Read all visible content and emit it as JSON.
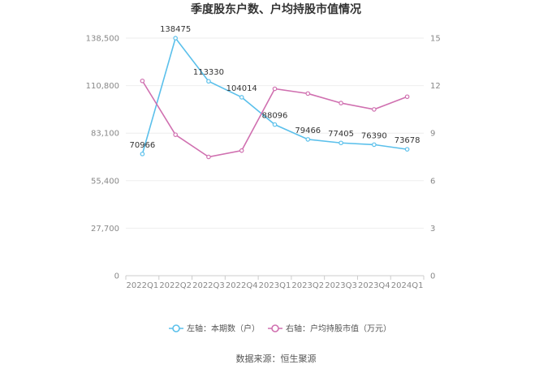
{
  "chart_data": {
    "type": "line",
    "title": "季度股东户数、户均持股市值情况",
    "categories": [
      "2022Q1",
      "2022Q2",
      "2022Q3",
      "2022Q4",
      "2023Q1",
      "2023Q2",
      "2023Q3",
      "2023Q4",
      "2024Q1"
    ],
    "left_axis": {
      "ylim": [
        0,
        138500
      ],
      "ticks": [
        0,
        27700,
        55400,
        83100,
        110800,
        138500
      ],
      "tick_labels": [
        "0",
        "27,700",
        "55,400",
        "83,100",
        "110,800",
        "138,500"
      ]
    },
    "right_axis": {
      "ylim": [
        0,
        15
      ],
      "ticks": [
        0,
        3,
        6,
        9,
        12,
        15
      ],
      "tick_labels": [
        "0",
        "3",
        "6",
        "9",
        "12",
        "15"
      ]
    },
    "series": [
      {
        "name": "左轴：本期数（户）",
        "axis": "left",
        "color": "#5bc0eb",
        "values": [
          70966,
          138475,
          113330,
          104014,
          88096,
          79466,
          77405,
          76390,
          73678
        ],
        "labels": [
          "70966",
          "138475",
          "113330",
          "104014",
          "88096",
          "79466",
          "77405",
          "76390",
          "73678"
        ]
      },
      {
        "name": "右轴：户均持股市值（万元）",
        "axis": "right",
        "color": "#d070b0",
        "values": [
          12.3,
          8.9,
          7.5,
          7.9,
          11.8,
          11.5,
          10.9,
          10.5,
          11.3
        ]
      }
    ],
    "grid": true,
    "legend_position": "bottom"
  },
  "footer": {
    "source": "数据来源：恒生聚源"
  }
}
